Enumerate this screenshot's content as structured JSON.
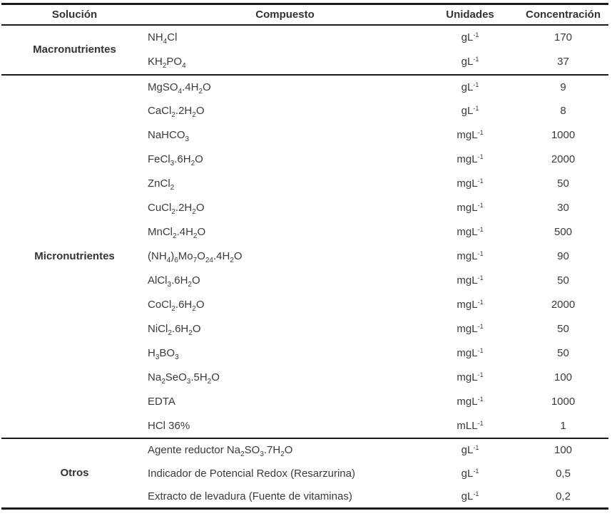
{
  "theme": {
    "text_color": "#3a3a3a",
    "border_color": "#1b1b1b",
    "background": "#ffffff"
  },
  "table": {
    "headers": {
      "solution": "Solución",
      "compound": "Compuesto",
      "units": "Unidades",
      "concentration": "Concentración"
    },
    "sections": [
      {
        "label": "Macronutrientes",
        "rows": [
          {
            "compound": "NH~4~Cl",
            "units": "gL^-1^",
            "concentration": "170"
          },
          {
            "compound": "KH~2~PO~4~",
            "units": "gL^-1^",
            "concentration": "37"
          }
        ]
      },
      {
        "label": "Micronutrientes",
        "rows": [
          {
            "compound": "MgSO~4~.4H~2~O",
            "units": "gL^-1^",
            "concentration": "9"
          },
          {
            "compound": "CaCl~2~.2H~2~O",
            "units": "gL^-1^",
            "concentration": "8"
          },
          {
            "compound": "NaHCO~3~",
            "units": "mgL^-1^",
            "concentration": "1000"
          },
          {
            "compound": "FeCl~3~.6H~2~O",
            "units": "mgL^-1^",
            "concentration": "2000"
          },
          {
            "compound": "ZnCl~2~",
            "units": "mgL^-1^",
            "concentration": "50"
          },
          {
            "compound": "CuCl~2~.2H~2~O",
            "units": "mgL^-1^",
            "concentration": "30"
          },
          {
            "compound": "MnCl~2~.4H~2~O",
            "units": "mgL^-1^",
            "concentration": "500"
          },
          {
            "compound": "(NH~4~)~6~Mo~7~O~24~.4H~2~O",
            "units": "mgL^-1^",
            "concentration": "90"
          },
          {
            "compound": "AlCl~3~.6H~2~O",
            "units": "mgL^-1^",
            "concentration": "50"
          },
          {
            "compound": "CoCl~2~.6H~2~O",
            "units": "mgL^-1^",
            "concentration": "2000"
          },
          {
            "compound": "NiCl~2~.6H~2~O",
            "units": "mgL^-1^",
            "concentration": "50"
          },
          {
            "compound": "H~3~BO~3~",
            "units": "mgL^-1^",
            "concentration": "50"
          },
          {
            "compound": "Na~2~SeO~3~.5H~2~O",
            "units": "mgL^-1^",
            "concentration": "100"
          },
          {
            "compound": "EDTA",
            "units": "mgL^-1^",
            "concentration": "1000"
          },
          {
            "compound": "HCl 36%",
            "units": "mLL^-1^",
            "concentration": "1"
          }
        ]
      },
      {
        "label": "Otros",
        "rows": [
          {
            "compound": "Agente reductor Na~2~SO~3~.7H~2~O",
            "units": "gL^-1^",
            "concentration": "100"
          },
          {
            "compound": "Indicador de Potencial Redox (Resarzurina)",
            "units": "gL^-1^",
            "concentration": "0,5"
          },
          {
            "compound": "Extracto de levadura (Fuente de vitaminas)",
            "units": "gL^-1^",
            "concentration": "0,2"
          }
        ]
      }
    ]
  }
}
